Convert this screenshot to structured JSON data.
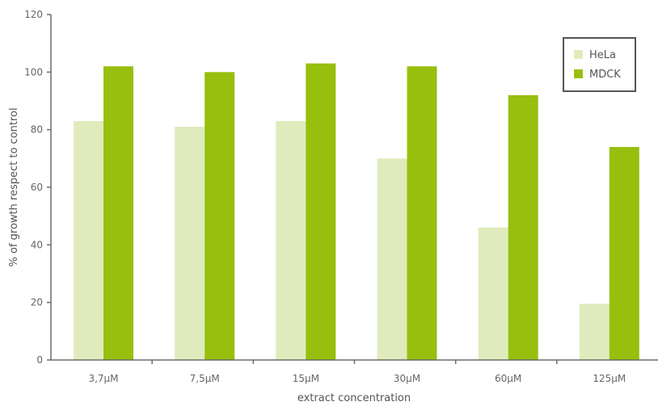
{
  "chart_data": {
    "type": "bar",
    "title": "",
    "xlabel": "extract concentration",
    "ylabel": "% of growth respect to control",
    "ylim": [
      0,
      120
    ],
    "yticks": [
      0,
      20,
      40,
      60,
      80,
      100,
      120
    ],
    "categories": [
      "3,7μM",
      "7,5μM",
      "15μM",
      "30μM",
      "60μM",
      "125μM"
    ],
    "series": [
      {
        "name": "HeLa",
        "color": "#e0ebbd",
        "values": [
          83,
          81,
          83,
          70,
          46,
          19.5
        ]
      },
      {
        "name": "MDCK",
        "color": "#97bf0d",
        "values": [
          102,
          100,
          103,
          102,
          92,
          74
        ]
      }
    ],
    "grid": false,
    "legend_position": "top-right"
  }
}
